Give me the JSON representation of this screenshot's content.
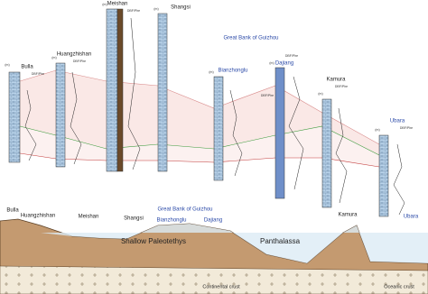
{
  "sections": {
    "labels": [
      "Bulla",
      "Huangzhishan",
      "Meishan",
      "Shangsi",
      "Bianzhonglu",
      "Dajiang",
      "Kamura",
      "Ubara"
    ],
    "group": "Great Bank of Guizhou",
    "axis_label": "DBF/Phe",
    "unit": "(m)"
  },
  "cross_section": {
    "labels": [
      "Bulla",
      "Huangzhishan",
      "Meishan",
      "Shangsi",
      "Bianzhonglu",
      "Dajiang",
      "Kamura",
      "Ubara"
    ],
    "group": "Great Bank of Guizhou",
    "seas": [
      "Shallow Paleotethys",
      "Panthalassa"
    ],
    "crusts": [
      "Continental crust",
      "Oceanic crust"
    ]
  }
}
